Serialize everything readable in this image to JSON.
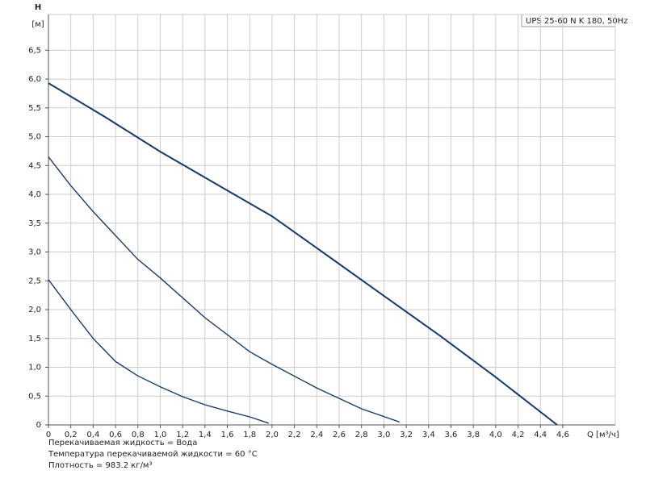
{
  "chart_data": {
    "type": "line",
    "legend_text": "UPS 25-60 N K 180, 50Hz",
    "y_label": "H",
    "y_unit": "[м]",
    "x_label": "Q [м³/ч]",
    "notes": [
      "Перекачиваемая жидкость = Вода",
      "Температура перекачиваемой жидкости = 60 °C",
      "Плотность = 983.2 кг/м³"
    ],
    "xlim": [
      0,
      5.07
    ],
    "ylim": [
      0,
      7.12
    ],
    "grid": true,
    "xticks": [
      0,
      {
        "value": 0.2,
        "label": "0,2"
      },
      {
        "value": 0.4,
        "label": "0,4"
      },
      {
        "value": 0.6,
        "label": "0,6"
      },
      {
        "value": 0.8,
        "label": "0,8"
      },
      {
        "value": 1.0,
        "label": "1,0"
      },
      {
        "value": 1.2,
        "label": "1,2"
      },
      {
        "value": 1.4,
        "label": "1,4"
      },
      {
        "value": 1.6,
        "label": "1,6"
      },
      {
        "value": 1.8,
        "label": "1,8"
      },
      {
        "value": 2.0,
        "label": "2,0"
      },
      {
        "value": 2.2,
        "label": "2,2"
      },
      {
        "value": 2.4,
        "label": "2,4"
      },
      {
        "value": 2.6,
        "label": "2,6"
      },
      {
        "value": 2.8,
        "label": "2,8"
      },
      {
        "value": 3.0,
        "label": "3,0"
      },
      {
        "value": 3.2,
        "label": "3,2"
      },
      {
        "value": 3.4,
        "label": "3,4"
      },
      {
        "value": 3.6,
        "label": "3,6"
      },
      {
        "value": 3.8,
        "label": "3,8"
      },
      {
        "value": 4.0,
        "label": "4,0"
      },
      {
        "value": 4.2,
        "label": "4,2"
      },
      {
        "value": 4.4,
        "label": "4,4"
      },
      {
        "value": 4.6,
        "label": "4,6"
      }
    ],
    "yticks": [
      0,
      {
        "value": 0.5,
        "label": "0,5"
      },
      {
        "value": 1.0,
        "label": "1,0"
      },
      {
        "value": 1.5,
        "label": "1,5"
      },
      {
        "value": 2.0,
        "label": "2,0"
      },
      {
        "value": 2.5,
        "label": "2,5"
      },
      {
        "value": 3.0,
        "label": "3,0"
      },
      {
        "value": 3.5,
        "label": "3,5"
      },
      {
        "value": 4.0,
        "label": "4,0"
      },
      {
        "value": 4.5,
        "label": "4,5"
      },
      {
        "value": 5.0,
        "label": "5,0"
      },
      {
        "value": 5.5,
        "label": "5,5"
      },
      {
        "value": 6.0,
        "label": "6,0"
      },
      {
        "value": 6.5,
        "label": "6,5"
      }
    ],
    "series": [
      {
        "color": "#173a6e",
        "x": [
          0,
          0.5,
          1.0,
          1.5,
          2.0,
          2.5,
          3.0,
          3.5,
          4.0,
          4.55
        ],
        "values": [
          5.93,
          5.35,
          4.74,
          4.18,
          3.62,
          2.93,
          2.24,
          1.55,
          0.83,
          0
        ]
      },
      {
        "color": "#173a6e",
        "x": [
          0,
          0.2,
          0.4,
          0.8,
          1.0,
          1.4,
          1.8,
          2.0,
          2.4,
          2.8,
          3.14
        ],
        "values": [
          4.65,
          4.15,
          3.7,
          2.87,
          2.55,
          1.86,
          1.27,
          1.05,
          0.64,
          0.28,
          0.05
        ]
      },
      {
        "color": "#173a6e",
        "x": [
          0,
          0.2,
          0.4,
          0.6,
          0.8,
          1.0,
          1.2,
          1.4,
          1.6,
          1.8,
          1.97
        ],
        "values": [
          2.52,
          2.0,
          1.5,
          1.1,
          0.85,
          0.66,
          0.49,
          0.35,
          0.24,
          0.14,
          0.03
        ]
      }
    ]
  }
}
